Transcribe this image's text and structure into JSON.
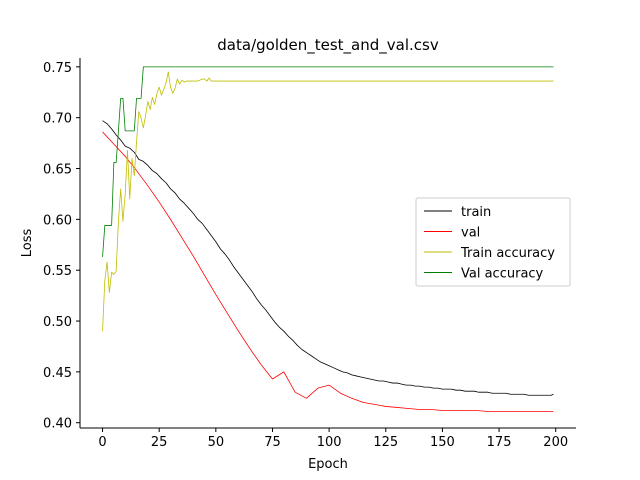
{
  "chart_data": {
    "type": "line",
    "title": "data/golden_test_and_val.csv",
    "xlabel": "Epoch",
    "ylabel": "Loss",
    "xlim": [
      -9.95,
      208.95
    ],
    "ylim": [
      0.3948,
      0.7587
    ],
    "xticks": [
      "0",
      "25",
      "50",
      "75",
      "100",
      "125",
      "150",
      "175",
      "200"
    ],
    "yticks": [
      "0.40",
      "0.45",
      "0.50",
      "0.55",
      "0.60",
      "0.65",
      "0.70",
      "0.75"
    ],
    "legend_position": "center-right",
    "series": [
      {
        "name": "train",
        "color": "#000000",
        "x": [
          0,
          2,
          4,
          6,
          8,
          10,
          12,
          14,
          16,
          18,
          20,
          22,
          24,
          26,
          28,
          30,
          32,
          34,
          36,
          38,
          40,
          42,
          44,
          46,
          48,
          50,
          52,
          54,
          56,
          58,
          60,
          62,
          64,
          66,
          68,
          70,
          72,
          74,
          76,
          78,
          80,
          82,
          84,
          86,
          88,
          90,
          92,
          94,
          96,
          98,
          100,
          102,
          104,
          106,
          108,
          110,
          112,
          114,
          116,
          118,
          120,
          122,
          124,
          126,
          128,
          130,
          132,
          134,
          136,
          138,
          140,
          142,
          144,
          146,
          148,
          150,
          152,
          154,
          156,
          158,
          160,
          162,
          164,
          166,
          168,
          170,
          172,
          174,
          176,
          178,
          180,
          182,
          184,
          186,
          188,
          190,
          192,
          194,
          196,
          198,
          199
        ],
        "values": [
          0.697,
          0.694,
          0.689,
          0.683,
          0.678,
          0.672,
          0.67,
          0.666,
          0.659,
          0.657,
          0.653,
          0.648,
          0.645,
          0.64,
          0.636,
          0.63,
          0.626,
          0.62,
          0.616,
          0.611,
          0.606,
          0.6,
          0.596,
          0.59,
          0.584,
          0.578,
          0.571,
          0.566,
          0.56,
          0.553,
          0.547,
          0.541,
          0.535,
          0.529,
          0.522,
          0.516,
          0.511,
          0.505,
          0.499,
          0.494,
          0.49,
          0.485,
          0.481,
          0.476,
          0.472,
          0.469,
          0.466,
          0.463,
          0.46,
          0.458,
          0.456,
          0.454,
          0.452,
          0.45,
          0.449,
          0.447,
          0.446,
          0.445,
          0.444,
          0.443,
          0.442,
          0.441,
          0.441,
          0.44,
          0.439,
          0.439,
          0.438,
          0.437,
          0.437,
          0.436,
          0.436,
          0.435,
          0.435,
          0.434,
          0.434,
          0.433,
          0.433,
          0.433,
          0.432,
          0.432,
          0.431,
          0.431,
          0.431,
          0.43,
          0.43,
          0.43,
          0.429,
          0.429,
          0.429,
          0.429,
          0.428,
          0.428,
          0.428,
          0.428,
          0.427,
          0.427,
          0.427,
          0.427,
          0.427,
          0.427,
          0.428
        ]
      },
      {
        "name": "val",
        "color": "#ff0000",
        "x": [
          0,
          5,
          10,
          15,
          20,
          25,
          30,
          35,
          40,
          45,
          50,
          55,
          60,
          65,
          70,
          75,
          80,
          85,
          90,
          95,
          100,
          105,
          110,
          115,
          120,
          125,
          130,
          135,
          140,
          145,
          150,
          155,
          160,
          165,
          170,
          175,
          180,
          185,
          190,
          195,
          199
        ],
        "values": [
          0.686,
          0.674,
          0.662,
          0.648,
          0.633,
          0.617,
          0.6,
          0.582,
          0.564,
          0.545,
          0.526,
          0.508,
          0.49,
          0.473,
          0.457,
          0.443,
          0.45,
          0.43,
          0.424,
          0.434,
          0.437,
          0.429,
          0.424,
          0.42,
          0.418,
          0.416,
          0.415,
          0.414,
          0.413,
          0.413,
          0.412,
          0.412,
          0.412,
          0.412,
          0.411,
          0.411,
          0.411,
          0.411,
          0.411,
          0.411,
          0.411
        ]
      },
      {
        "name": "Train accuracy",
        "color": "#bfbf00",
        "x": [
          0,
          1,
          2,
          3,
          4,
          5,
          6,
          7,
          8,
          9,
          10,
          11,
          12,
          13,
          14,
          15,
          16,
          17,
          18,
          19,
          20,
          21,
          22,
          23,
          24,
          25,
          26,
          27,
          28,
          29,
          30,
          31,
          32,
          33,
          34,
          35,
          36,
          37,
          38,
          40,
          42,
          44,
          45,
          46,
          47,
          48,
          49,
          50,
          60,
          80,
          100,
          125,
          150,
          175,
          199
        ],
        "values": [
          0.49,
          0.54,
          0.558,
          0.528,
          0.548,
          0.546,
          0.549,
          0.598,
          0.63,
          0.598,
          0.625,
          0.668,
          0.62,
          0.66,
          0.643,
          0.676,
          0.706,
          0.7,
          0.69,
          0.702,
          0.716,
          0.708,
          0.72,
          0.713,
          0.724,
          0.73,
          0.722,
          0.728,
          0.734,
          0.745,
          0.73,
          0.724,
          0.729,
          0.738,
          0.733,
          0.737,
          0.735,
          0.736,
          0.736,
          0.736,
          0.736,
          0.738,
          0.738,
          0.736,
          0.739,
          0.736,
          0.736,
          0.736,
          0.736,
          0.736,
          0.736,
          0.736,
          0.736,
          0.736,
          0.736
        ]
      },
      {
        "name": "Val accuracy",
        "color": "#008000",
        "x": [
          0,
          1,
          2,
          3,
          4,
          5,
          6,
          7,
          8,
          9,
          10,
          11,
          12,
          13,
          14,
          15,
          16,
          17,
          18,
          19,
          20,
          50,
          100,
          150,
          199
        ],
        "values": [
          0.563,
          0.594,
          0.594,
          0.594,
          0.594,
          0.656,
          0.656,
          0.687,
          0.719,
          0.719,
          0.687,
          0.687,
          0.687,
          0.687,
          0.687,
          0.719,
          0.719,
          0.719,
          0.75,
          0.75,
          0.75,
          0.75,
          0.75,
          0.75,
          0.75
        ]
      }
    ]
  }
}
